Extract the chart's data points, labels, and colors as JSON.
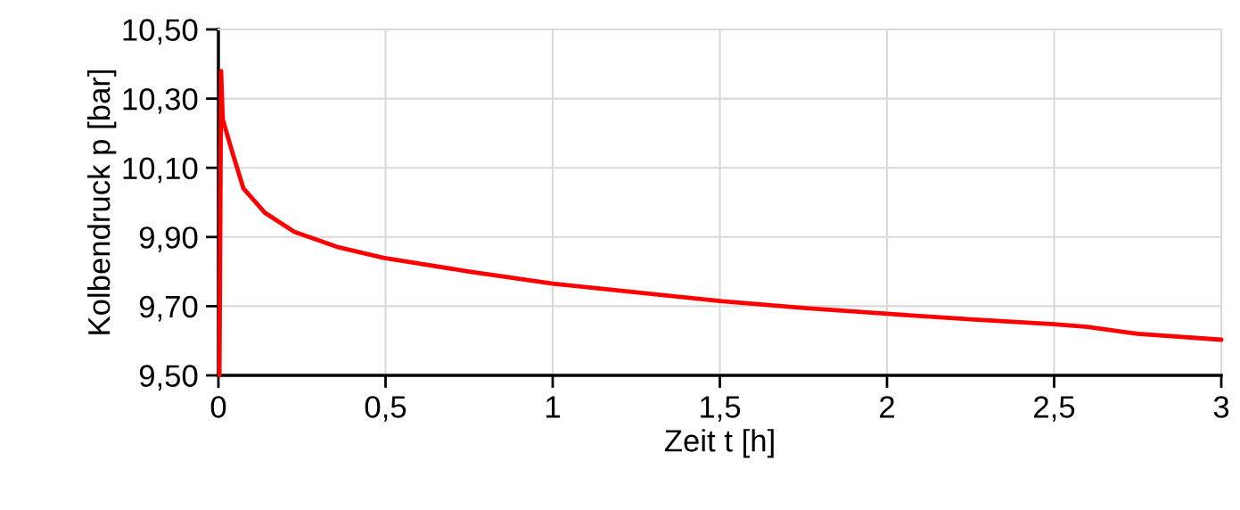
{
  "chart_data": {
    "type": "line",
    "xlabel": "Zeit t [h]",
    "ylabel": "Kolbendruck p [bar]",
    "series": [
      {
        "color": "#ff0000",
        "x": [
          0.003,
          0.008,
          0.013,
          0.04,
          0.075,
          0.139,
          0.227,
          0.36,
          0.493,
          0.75,
          1.0,
          1.25,
          1.5,
          1.75,
          2.0,
          2.25,
          2.5,
          2.6,
          2.75,
          3.0
        ],
        "values": [
          9.5,
          10.38,
          10.24,
          10.15,
          10.04,
          9.97,
          9.915,
          9.87,
          9.84,
          9.8,
          9.765,
          9.74,
          9.715,
          9.695,
          9.678,
          9.662,
          9.648,
          9.64,
          9.62,
          9.603
        ]
      }
    ],
    "xlim": [
      0,
      3
    ],
    "ylim": [
      9.5,
      10.5
    ],
    "xticks": [
      0,
      {
        "value": 0.5,
        "label": "0,5"
      },
      1,
      {
        "value": 1.5,
        "label": "1,5"
      },
      2,
      {
        "value": 2.5,
        "label": "2,5"
      },
      3
    ],
    "yticks": [
      {
        "value": 9.5,
        "label": "9,50"
      },
      {
        "value": 9.7,
        "label": "9,70"
      },
      {
        "value": 9.9,
        "label": "9,90"
      },
      {
        "value": 10.1,
        "label": "10,10"
      },
      {
        "value": 10.3,
        "label": "10,30"
      },
      {
        "value": 10.5,
        "label": "10,50"
      }
    ],
    "grid": true,
    "marker": "none",
    "line_style": "solid"
  }
}
